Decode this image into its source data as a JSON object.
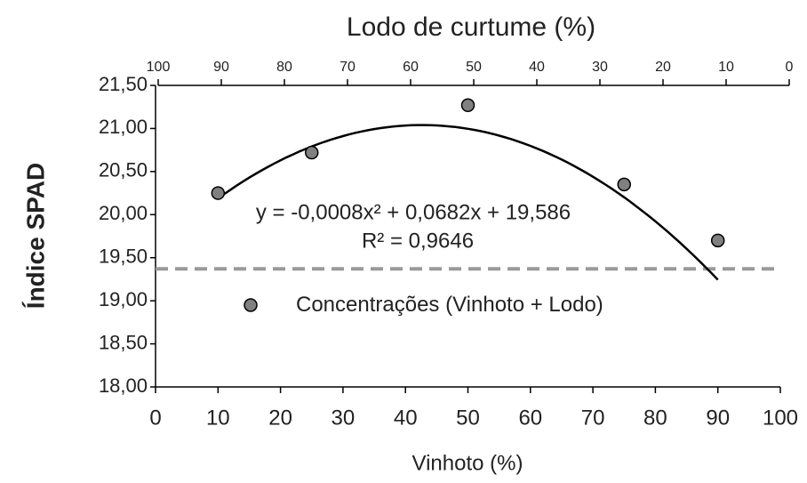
{
  "chart_data": {
    "type": "scatter",
    "xlabel": "Vinhoto (%)",
    "x2label": "Lodo de curtume (%)",
    "ylabel": "Índice SPAD",
    "xlim": [
      0,
      100
    ],
    "xticks": [
      0,
      10,
      20,
      30,
      40,
      50,
      60,
      70,
      80,
      90,
      100
    ],
    "x2lim": [
      100,
      0
    ],
    "x2ticks": [
      100,
      90,
      80,
      70,
      60,
      50,
      40,
      30,
      20,
      10,
      0
    ],
    "ylim": [
      18,
      21.5
    ],
    "yticks": [
      {
        "value": 18,
        "label": "18,00"
      },
      {
        "value": 18.5,
        "label": "18,50"
      },
      {
        "value": 19,
        "label": "19,00"
      },
      {
        "value": 19.5,
        "label": "19,50"
      },
      {
        "value": 20,
        "label": "20,00"
      },
      {
        "value": 20.5,
        "label": "20,50"
      },
      {
        "value": 21,
        "label": "21,00"
      },
      {
        "value": 21.5,
        "label": "21,50"
      }
    ],
    "series": [
      {
        "name": "Concentrações (Vinhoto + Lodo)",
        "color": "#808080",
        "x": [
          10,
          25,
          50,
          75,
          90
        ],
        "values": [
          20.25,
          20.72,
          21.27,
          20.35,
          19.7
        ]
      }
    ],
    "trendline": {
      "coefficients": [
        -0.0008,
        0.0682,
        19.586
      ],
      "color": "#000000",
      "equation": "y = -0,0008x² + 0,0682x + 19,586",
      "r2_label": "R² = 0,9646"
    },
    "reference_line": {
      "value": 19.37,
      "color": "#999999",
      "style": "dashed"
    }
  }
}
